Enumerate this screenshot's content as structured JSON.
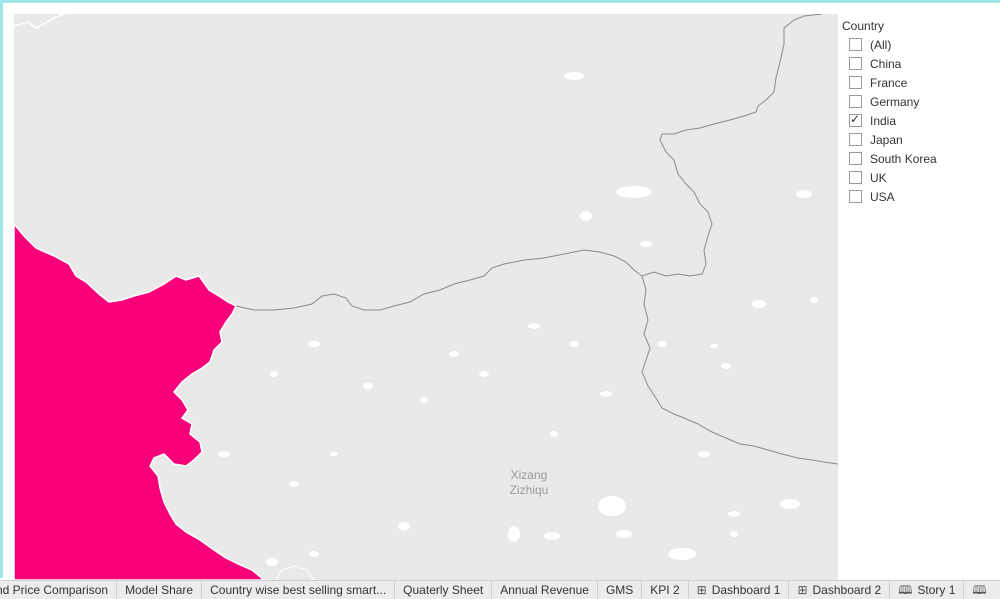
{
  "map": {
    "label_line1": "Xizang",
    "label_line2": "Zizhiqu",
    "highlight_color": "#f7007a"
  },
  "filter": {
    "title": "Country",
    "options": [
      {
        "label": "(All)",
        "checked": false
      },
      {
        "label": "China",
        "checked": false
      },
      {
        "label": "France",
        "checked": false
      },
      {
        "label": "Germany",
        "checked": false
      },
      {
        "label": "India",
        "checked": true
      },
      {
        "label": "Japan",
        "checked": false
      },
      {
        "label": "South Korea",
        "checked": false
      },
      {
        "label": "UK",
        "checked": false
      },
      {
        "label": "USA",
        "checked": false
      }
    ]
  },
  "tabs": [
    {
      "label": "nd Price  Comparison",
      "icon": ""
    },
    {
      "label": "Model Share",
      "icon": ""
    },
    {
      "label": "Country wise best selling smart...",
      "icon": ""
    },
    {
      "label": "Quaterly Sheet",
      "icon": ""
    },
    {
      "label": "Annual Revenue",
      "icon": ""
    },
    {
      "label": "GMS",
      "icon": ""
    },
    {
      "label": "KPI 2",
      "icon": ""
    },
    {
      "label": "Dashboard 1",
      "icon": "dashboard-icon"
    },
    {
      "label": "Dashboard 2",
      "icon": "dashboard-icon"
    },
    {
      "label": "Story 1",
      "icon": "story-icon"
    },
    {
      "label": "",
      "icon": "story-icon"
    }
  ]
}
